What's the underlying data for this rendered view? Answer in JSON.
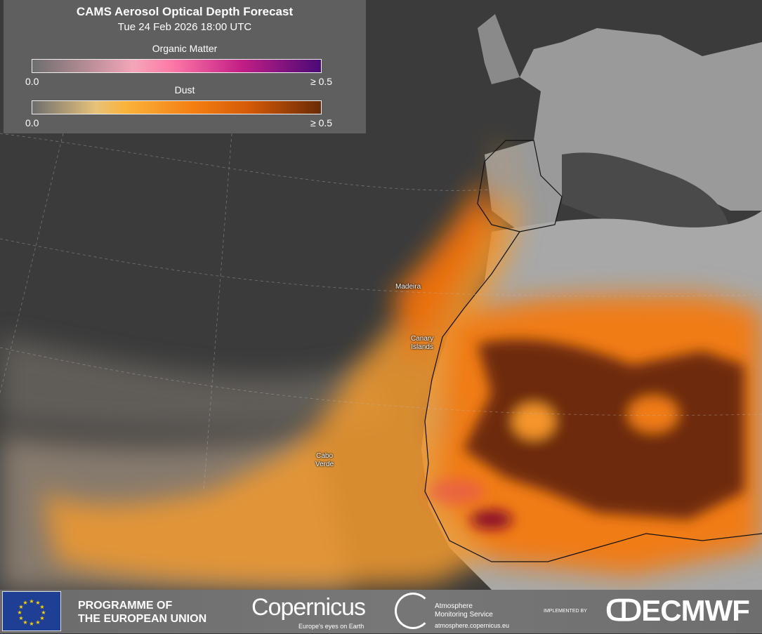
{
  "legend": {
    "title": "CAMS Aerosol Optical Depth Forecast",
    "datetime": "Tue 24 Feb 2026 18:00 UTC",
    "scales": [
      {
        "name": "Organic Matter",
        "min_label": "0.0",
        "max_label": "≥ 0.5",
        "colors": [
          "#6e6e6e",
          "#f4a6b8",
          "#ff7aa8",
          "#c41f86",
          "#4a0a78"
        ]
      },
      {
        "name": "Dust",
        "min_label": "0.0",
        "max_label": "≥ 0.5",
        "colors": [
          "#6e6e6e",
          "#e8c27a",
          "#fbb33b",
          "#f47e12",
          "#d45a08",
          "#6a2a06"
        ]
      }
    ]
  },
  "places": {
    "madeira": "Madeira",
    "canary": "Canary\nIslands",
    "cabo": "Cabo\nVerde"
  },
  "footer": {
    "eu_line1": "PROGRAMME OF",
    "eu_line2": "THE EUROPEAN UNION",
    "copernicus": "opernicus",
    "copernicus_tagline": "Europe's eyes on Earth",
    "cams_line1": "Atmosphere",
    "cams_line2": "Monitoring Service",
    "cams_url": "atmosphere.copernicus.eu",
    "implemented_by": "IMPLEMENTED BY",
    "ecmwf": "ECMWF"
  }
}
